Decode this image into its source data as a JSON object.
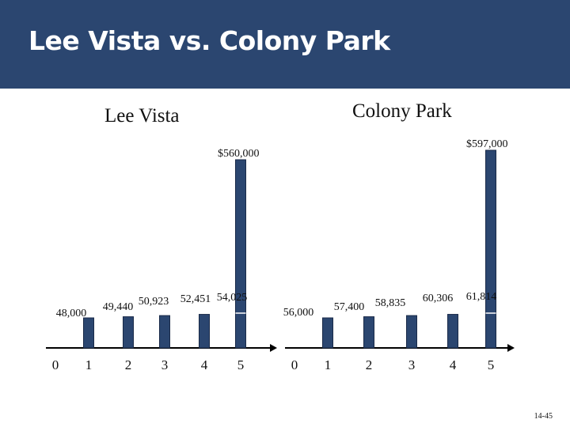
{
  "header": {
    "title": "Lee Vista vs. Colony Park"
  },
  "page_number": "14-45",
  "colors": {
    "header": "#2b4670",
    "bar": "#2b4670",
    "bar_outline": "#1a2a48",
    "axis": "#000000"
  },
  "chart_data": [
    {
      "type": "bar",
      "title": "Lee Vista",
      "categories": [
        "0",
        "1",
        "2",
        "3",
        "4",
        "5"
      ],
      "values": [
        null,
        48000,
        49440,
        50923,
        52451,
        54025
      ],
      "value_labels": [
        "",
        "48,000",
        "49,440",
        "50,923",
        "52,451",
        "54,025"
      ],
      "top_value": 560000,
      "top_label": "$560,000",
      "xlabel": "",
      "ylabel": "",
      "grid": false
    },
    {
      "type": "bar",
      "title": "Colony Park",
      "categories": [
        "0",
        "1",
        "2",
        "3",
        "4",
        "5"
      ],
      "values": [
        null,
        56000,
        57400,
        58835,
        60306,
        61814
      ],
      "value_labels": [
        "",
        "56,000",
        "57,400",
        "58,835",
        "60,306",
        "61,814"
      ],
      "top_value": 597000,
      "top_label": "$597,000",
      "xlabel": "",
      "ylabel": "",
      "grid": false
    }
  ]
}
